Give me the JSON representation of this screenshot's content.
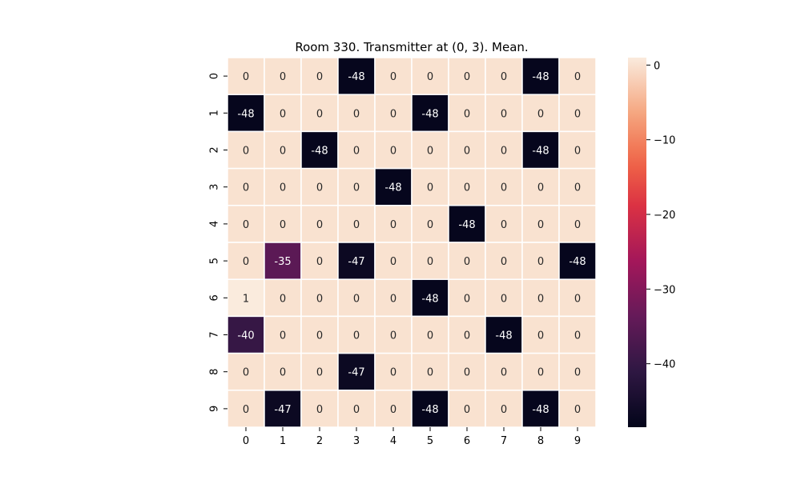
{
  "chart_data": {
    "type": "heatmap",
    "title": "Room 330. Transmitter at (0, 3). Mean.",
    "xlabel": "",
    "ylabel": "",
    "x_labels": [
      "0",
      "1",
      "2",
      "3",
      "4",
      "5",
      "6",
      "7",
      "8",
      "9"
    ],
    "y_labels": [
      "0",
      "1",
      "2",
      "3",
      "4",
      "5",
      "6",
      "7",
      "8",
      "9"
    ],
    "values": [
      [
        0,
        0,
        0,
        -48,
        0,
        0,
        0,
        0,
        -48,
        0
      ],
      [
        -48,
        0,
        0,
        0,
        0,
        -48,
        0,
        0,
        0,
        0
      ],
      [
        0,
        0,
        -48,
        0,
        0,
        0,
        0,
        0,
        -48,
        0
      ],
      [
        0,
        0,
        0,
        0,
        -48,
        0,
        0,
        0,
        0,
        0
      ],
      [
        0,
        0,
        0,
        0,
        0,
        0,
        -48,
        0,
        0,
        0
      ],
      [
        0,
        -35,
        0,
        -47,
        0,
        0,
        0,
        0,
        0,
        -48
      ],
      [
        1,
        0,
        0,
        0,
        0,
        -48,
        0,
        0,
        0,
        0
      ],
      [
        -40,
        0,
        0,
        0,
        0,
        0,
        0,
        -48,
        0,
        0
      ],
      [
        0,
        0,
        0,
        -47,
        0,
        0,
        0,
        0,
        0,
        0
      ],
      [
        0,
        -47,
        0,
        0,
        0,
        -48,
        0,
        0,
        -48,
        0
      ]
    ],
    "value_range": [
      -48.5,
      1
    ],
    "colorbar": {
      "ticks": [
        0,
        -10,
        -20,
        -30,
        -40
      ],
      "tick_labels": [
        "0",
        "−10",
        "−20",
        "−30",
        "−40"
      ]
    },
    "colormap": "rocket",
    "grid": true
  }
}
